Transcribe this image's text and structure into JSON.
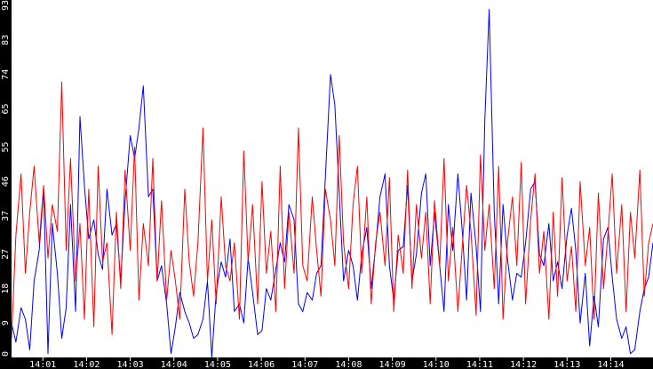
{
  "chart_data": {
    "type": "line",
    "title": "",
    "xlabel": "",
    "ylabel": "",
    "x_ticks": [
      "14:01",
      "14:02",
      "14:03",
      "14:04",
      "14:05",
      "14:06",
      "14:07",
      "14:08",
      "14:09",
      "14:10",
      "14:11",
      "14:12",
      "14:13",
      "14:14"
    ],
    "y_ticks": [
      0,
      9,
      18,
      27,
      37,
      46,
      55,
      65,
      74,
      83,
      93
    ],
    "ylim": [
      0,
      93
    ],
    "xlim": [
      "14:00:17",
      "14:14:58"
    ],
    "grid": false,
    "colors": {
      "background": "#ffffff",
      "axis": "#000000",
      "tick_text": "#ffffff"
    },
    "series": [
      {
        "color": "#0000ff",
        "x": [
          "14:00:17",
          "14:00:23",
          "14:00:30",
          "14:00:36",
          "14:00:42",
          "14:00:48",
          "14:00:55",
          "14:01:01",
          "14:01:07",
          "14:01:13",
          "14:01:20",
          "14:01:26",
          "14:01:32",
          "14:01:38",
          "14:01:45",
          "14:01:51",
          "14:01:57",
          "14:02:03",
          "14:02:10",
          "14:02:16",
          "14:02:22",
          "14:02:28",
          "14:02:35",
          "14:02:41",
          "14:02:47",
          "14:02:53",
          "14:03:00",
          "14:03:06",
          "14:03:12",
          "14:03:18",
          "14:03:25",
          "14:03:31",
          "14:03:37",
          "14:03:43",
          "14:03:50",
          "14:03:56",
          "14:04:02",
          "14:04:08",
          "14:04:15",
          "14:04:21",
          "14:04:27",
          "14:04:33",
          "14:04:40",
          "14:04:46",
          "14:04:52",
          "14:04:58",
          "14:05:05",
          "14:05:11",
          "14:05:17",
          "14:05:23",
          "14:05:30",
          "14:05:36",
          "14:05:42",
          "14:05:48",
          "14:05:55",
          "14:06:01",
          "14:06:07",
          "14:06:13",
          "14:06:20",
          "14:06:26",
          "14:06:32",
          "14:06:38",
          "14:06:45",
          "14:06:51",
          "14:06:57",
          "14:07:03",
          "14:07:10",
          "14:07:16",
          "14:07:22",
          "14:07:28",
          "14:07:35",
          "14:07:41",
          "14:07:47",
          "14:07:53",
          "14:08:00",
          "14:08:06",
          "14:08:12",
          "14:08:18",
          "14:08:25",
          "14:08:31",
          "14:08:37",
          "14:08:43",
          "14:08:50",
          "14:08:56",
          "14:09:02",
          "14:09:08",
          "14:09:15",
          "14:09:21",
          "14:09:27",
          "14:09:33",
          "14:09:40",
          "14:09:46",
          "14:09:52",
          "14:09:58",
          "14:10:05",
          "14:10:11",
          "14:10:17",
          "14:10:23",
          "14:10:30",
          "14:10:36",
          "14:10:42",
          "14:10:48",
          "14:10:55",
          "14:11:01",
          "14:11:07",
          "14:11:13",
          "14:11:20",
          "14:11:26",
          "14:11:32",
          "14:11:38",
          "14:11:45",
          "14:11:51",
          "14:11:57",
          "14:12:03",
          "14:12:10",
          "14:12:16",
          "14:12:22",
          "14:12:28",
          "14:12:35",
          "14:12:41",
          "14:12:47",
          "14:12:53",
          "14:13:00",
          "14:13:06",
          "14:13:12",
          "14:13:18",
          "14:13:25",
          "14:13:31",
          "14:13:37",
          "14:13:43",
          "14:13:50",
          "14:13:56",
          "14:14:02",
          "14:14:08",
          "14:14:15",
          "14:14:21",
          "14:14:27",
          "14:14:33",
          "14:14:40",
          "14:14:46",
          "14:14:52",
          "14:14:58"
        ],
        "y": [
          9,
          4,
          13,
          10,
          2,
          20,
          28,
          44,
          1,
          35,
          22,
          5,
          13,
          40,
          12,
          63,
          45,
          31,
          36,
          27,
          23,
          44,
          32,
          35,
          20,
          41,
          58,
          52,
          60,
          71,
          42,
          44,
          20,
          24,
          14,
          1,
          8,
          17,
          12,
          9,
          5,
          6,
          10,
          20,
          0,
          17,
          25,
          21,
          31,
          12,
          14,
          9,
          26,
          17,
          6,
          7,
          18,
          15,
          23,
          30,
          25,
          40,
          36,
          14,
          12,
          17,
          15,
          22,
          24,
          47,
          74,
          66,
          43,
          20,
          28,
          24,
          15,
          27,
          34,
          18,
          29,
          42,
          48,
          24,
          15,
          28,
          29,
          45,
          20,
          27,
          43,
          48,
          24,
          38,
          24,
          12,
          40,
          28,
          48,
          33,
          15,
          43,
          29,
          12,
          62,
          91,
          38,
          14,
          40,
          26,
          15,
          22,
          21,
          30,
          44,
          46,
          27,
          24,
          35,
          20,
          25,
          18,
          32,
          39,
          28,
          9,
          22,
          3,
          16,
          8,
          31,
          34,
          21,
          10,
          5,
          8,
          1,
          2,
          12,
          18,
          21,
          30
        ]
      },
      {
        "color": "#ff0000",
        "x": [
          "14:00:17",
          "14:00:23",
          "14:00:30",
          "14:00:36",
          "14:00:42",
          "14:00:48",
          "14:00:55",
          "14:01:01",
          "14:01:07",
          "14:01:13",
          "14:01:20",
          "14:01:26",
          "14:01:32",
          "14:01:38",
          "14:01:45",
          "14:01:51",
          "14:01:57",
          "14:02:03",
          "14:02:10",
          "14:02:16",
          "14:02:22",
          "14:02:28",
          "14:02:35",
          "14:02:41",
          "14:02:47",
          "14:02:53",
          "14:03:00",
          "14:03:06",
          "14:03:12",
          "14:03:18",
          "14:03:25",
          "14:03:31",
          "14:03:37",
          "14:03:43",
          "14:03:50",
          "14:03:56",
          "14:04:02",
          "14:04:08",
          "14:04:15",
          "14:04:21",
          "14:04:27",
          "14:04:33",
          "14:04:40",
          "14:04:46",
          "14:04:52",
          "14:04:58",
          "14:05:05",
          "14:05:11",
          "14:05:17",
          "14:05:23",
          "14:05:30",
          "14:05:36",
          "14:05:42",
          "14:05:48",
          "14:05:55",
          "14:06:01",
          "14:06:07",
          "14:06:13",
          "14:06:20",
          "14:06:26",
          "14:06:32",
          "14:06:38",
          "14:06:45",
          "14:06:51",
          "14:06:57",
          "14:07:03",
          "14:07:10",
          "14:07:16",
          "14:07:22",
          "14:07:28",
          "14:07:35",
          "14:07:41",
          "14:07:47",
          "14:07:53",
          "14:08:00",
          "14:08:06",
          "14:08:12",
          "14:08:18",
          "14:08:25",
          "14:08:31",
          "14:08:37",
          "14:08:43",
          "14:08:50",
          "14:08:56",
          "14:09:02",
          "14:09:08",
          "14:09:15",
          "14:09:21",
          "14:09:27",
          "14:09:33",
          "14:09:40",
          "14:09:46",
          "14:09:52",
          "14:09:58",
          "14:10:05",
          "14:10:11",
          "14:10:17",
          "14:10:23",
          "14:10:30",
          "14:10:36",
          "14:10:42",
          "14:10:48",
          "14:10:55",
          "14:11:01",
          "14:11:07",
          "14:11:13",
          "14:11:20",
          "14:11:26",
          "14:11:32",
          "14:11:38",
          "14:11:45",
          "14:11:51",
          "14:11:57",
          "14:12:03",
          "14:12:10",
          "14:12:16",
          "14:12:22",
          "14:12:28",
          "14:12:35",
          "14:12:41",
          "14:12:47",
          "14:12:53",
          "14:13:00",
          "14:13:06",
          "14:13:12",
          "14:13:18",
          "14:13:25",
          "14:13:31",
          "14:13:37",
          "14:13:43",
          "14:13:50",
          "14:13:56",
          "14:14:02",
          "14:14:08",
          "14:14:15",
          "14:14:21",
          "14:14:27",
          "14:14:33",
          "14:14:40",
          "14:14:46",
          "14:14:52",
          "14:14:58"
        ],
        "y": [
          5,
          32,
          48,
          22,
          38,
          50,
          30,
          45,
          26,
          40,
          33,
          72,
          28,
          52,
          20,
          35,
          10,
          44,
          8,
          50,
          25,
          30,
          6,
          38,
          18,
          49,
          28,
          55,
          15,
          35,
          24,
          52,
          20,
          41,
          15,
          28,
          20,
          10,
          44,
          25,
          16,
          30,
          60,
          20,
          36,
          14,
          42,
          24,
          20,
          30,
          10,
          54,
          25,
          40,
          14,
          46,
          22,
          33,
          12,
          50,
          18,
          38,
          22,
          60,
          24,
          20,
          42,
          28,
          16,
          44,
          36,
          24,
          58,
          30,
          18,
          40,
          50,
          22,
          42,
          14,
          30,
          38,
          24,
          47,
          12,
          32,
          22,
          49,
          18,
          40,
          26,
          38,
          14,
          41,
          24,
          52,
          20,
          34,
          12,
          29,
          45,
          33,
          11,
          53,
          28,
          40,
          18,
          50,
          10,
          30,
          42,
          24,
          51,
          14,
          36,
          48,
          22,
          33,
          10,
          38,
          16,
          47,
          20,
          29,
          12,
          46,
          24,
          34,
          10,
          43,
          18,
          32,
          48,
          22,
          40,
          12,
          38,
          26,
          49,
          16,
          30,
          35
        ]
      }
    ]
  }
}
